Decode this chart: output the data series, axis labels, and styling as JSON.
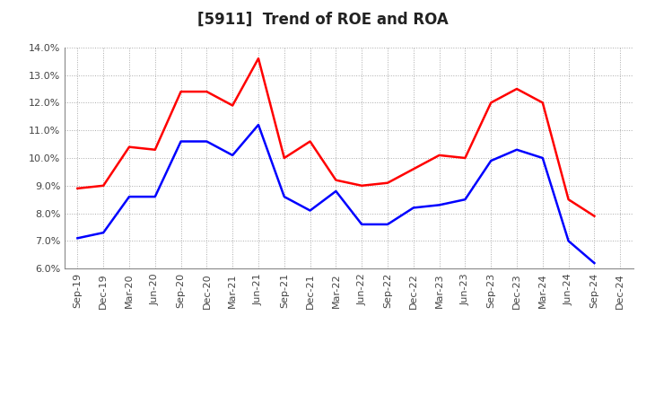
{
  "title": "[5911]  Trend of ROE and ROA",
  "labels": [
    "Sep-19",
    "Dec-19",
    "Mar-20",
    "Jun-20",
    "Sep-20",
    "Dec-20",
    "Mar-21",
    "Jun-21",
    "Sep-21",
    "Dec-21",
    "Mar-22",
    "Jun-22",
    "Sep-22",
    "Dec-22",
    "Mar-23",
    "Jun-23",
    "Sep-23",
    "Dec-23",
    "Mar-24",
    "Jun-24",
    "Sep-24",
    "Dec-24"
  ],
  "ROE": [
    8.9,
    9.0,
    10.4,
    10.3,
    12.4,
    12.4,
    11.9,
    13.6,
    10.0,
    10.6,
    9.2,
    9.0,
    9.1,
    9.6,
    10.1,
    10.0,
    12.0,
    12.5,
    12.0,
    8.5,
    7.9,
    null
  ],
  "ROA": [
    7.1,
    7.3,
    8.6,
    8.6,
    10.6,
    10.6,
    10.1,
    11.2,
    8.6,
    8.1,
    8.8,
    7.6,
    7.6,
    8.2,
    8.3,
    8.5,
    9.9,
    10.3,
    10.0,
    7.0,
    6.2,
    null
  ],
  "roe_color": "#FF0000",
  "roa_color": "#0000FF",
  "ylim": [
    6.0,
    14.0
  ],
  "yticks": [
    6.0,
    7.0,
    8.0,
    9.0,
    10.0,
    11.0,
    12.0,
    13.0,
    14.0
  ],
  "background_color": "#ffffff",
  "grid_color": "#aaaaaa",
  "line_width": 1.8,
  "title_fontsize": 12,
  "tick_fontsize": 8,
  "legend_fontsize": 10
}
